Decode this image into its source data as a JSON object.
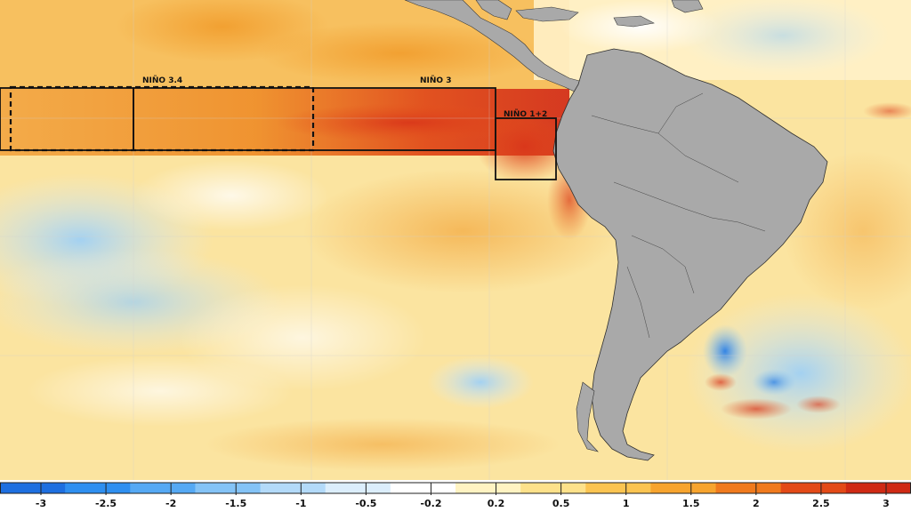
{
  "map": {
    "regions": [
      {
        "id": "nino-3-4",
        "label": "NIÑO 3.4"
      },
      {
        "id": "nino-3",
        "label": "NIÑO 3"
      },
      {
        "id": "nino-1-2",
        "label": "NIÑO 1+2"
      }
    ],
    "land_color": "#a9a9a9",
    "ocean_base_color": "#fbe7a0"
  },
  "colorbar": {
    "ticks": [
      "-3",
      "-2.5",
      "-2",
      "-1.5",
      "-1",
      "-0.5",
      "-0.2",
      "0.2",
      "0.5",
      "1",
      "1.5",
      "2",
      "2.5",
      "3"
    ],
    "colors": [
      "#1e6fe0",
      "#2f8ff0",
      "#55a9f4",
      "#84c3f6",
      "#b3daf9",
      "#dceefc",
      "#ffffff",
      "#fff3c2",
      "#fde18a",
      "#fbc451",
      "#f7a42e",
      "#f07a1d",
      "#e34a17",
      "#cf2a14"
    ]
  }
}
